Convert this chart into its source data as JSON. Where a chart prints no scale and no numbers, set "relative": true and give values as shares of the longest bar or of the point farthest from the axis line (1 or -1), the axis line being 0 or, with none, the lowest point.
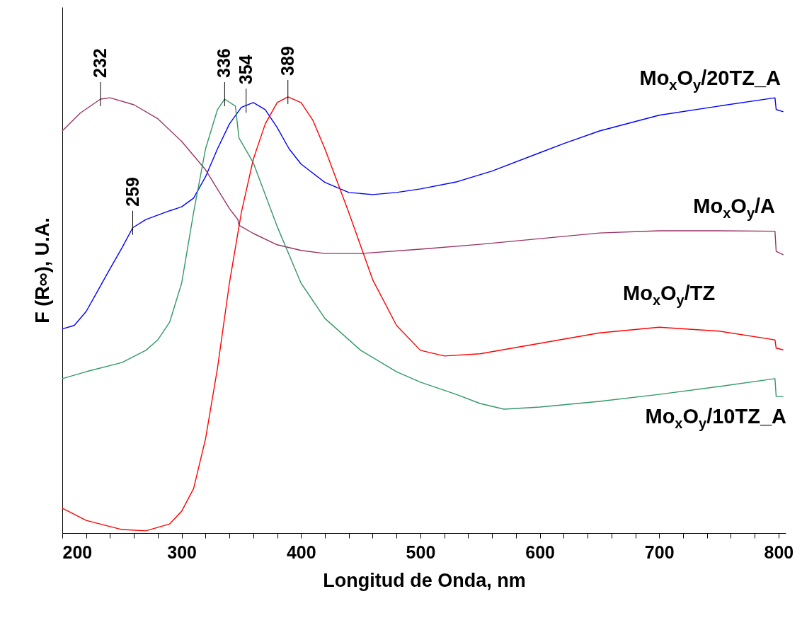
{
  "chart_data": {
    "type": "line",
    "relative": true,
    "xlabel": "Longitud de Onda, nm",
    "ylabel": "F (R∞), U.A.",
    "xlim": [
      200,
      806
    ],
    "xticks": [
      200,
      {
        "value": 220,
        "label": null
      },
      {
        "value": 240,
        "label": null
      },
      {
        "value": 260,
        "label": null
      },
      {
        "value": 280,
        "label": null
      },
      300,
      {
        "value": 320,
        "label": null
      },
      {
        "value": 340,
        "label": null
      },
      {
        "value": 360,
        "label": null
      },
      {
        "value": 380,
        "label": null
      },
      400,
      {
        "value": 420,
        "label": null
      },
      {
        "value": 440,
        "label": null
      },
      {
        "value": 460,
        "label": null
      },
      {
        "value": 480,
        "label": null
      },
      500,
      {
        "value": 520,
        "label": null
      },
      {
        "value": 540,
        "label": null
      },
      {
        "value": 560,
        "label": null
      },
      {
        "value": 580,
        "label": null
      },
      600,
      {
        "value": 620,
        "label": null
      },
      {
        "value": 640,
        "label": null
      },
      {
        "value": 660,
        "label": null
      },
      {
        "value": 680,
        "label": null
      },
      700,
      {
        "value": 720,
        "label": null
      },
      {
        "value": 740,
        "label": null
      },
      {
        "value": 760,
        "label": null
      },
      {
        "value": 780,
        "label": null
      },
      800
    ],
    "grid": false,
    "legend": false,
    "marker": "none",
    "line_style": "solid",
    "series": [
      {
        "name": "Mo$_{x}$O$_{y}$/20TZ_A",
        "color": "#0000ff",
        "x": [
          200,
          210,
          220,
          230,
          240,
          250,
          259,
          270,
          290,
          300,
          310,
          320,
          330,
          340,
          350,
          360,
          370,
          380,
          390,
          400,
          420,
          440,
          460,
          480,
          500,
          530,
          560,
          600,
          620,
          650,
          700,
          750,
          797,
          798,
          804
        ],
        "values": [
          0.468,
          0.476,
          0.508,
          0.557,
          0.606,
          0.654,
          0.7,
          0.719,
          0.739,
          0.748,
          0.768,
          0.817,
          0.881,
          0.938,
          0.976,
          0.987,
          0.971,
          0.93,
          0.881,
          0.846,
          0.804,
          0.781,
          0.776,
          0.781,
          0.789,
          0.805,
          0.83,
          0.872,
          0.893,
          0.922,
          0.958,
          0.979,
          0.998,
          0.971,
          0.966
        ]
      },
      {
        "name": "Mo$_{x}$O$_{y}$/A",
        "color": "#993366",
        "x": [
          200,
          215,
          232,
          240,
          260,
          280,
          300,
          320,
          340,
          347,
          348,
          360,
          380,
          400,
          420,
          450,
          500,
          550,
          600,
          650,
          700,
          750,
          797,
          798,
          804
        ],
        "values": [
          0.922,
          0.963,
          0.995,
          0.998,
          0.982,
          0.95,
          0.898,
          0.833,
          0.744,
          0.719,
          0.706,
          0.687,
          0.661,
          0.648,
          0.641,
          0.641,
          0.651,
          0.662,
          0.675,
          0.688,
          0.693,
          0.693,
          0.692,
          0.646,
          0.638
        ]
      },
      {
        "name": "Mo$_{x}$O$_{y}$/TZ",
        "color": "#ff0000",
        "x": [
          200,
          220,
          250,
          270,
          290,
          300,
          310,
          320,
          330,
          340,
          350,
          360,
          370,
          380,
          389,
          400,
          410,
          420,
          440,
          460,
          480,
          500,
          520,
          550,
          600,
          650,
          700,
          750,
          797,
          798,
          804
        ],
        "values": [
          0.057,
          0.029,
          0.008,
          0.005,
          0.021,
          0.05,
          0.102,
          0.216,
          0.378,
          0.573,
          0.735,
          0.857,
          0.938,
          0.987,
          1.0,
          0.987,
          0.946,
          0.881,
          0.735,
          0.581,
          0.476,
          0.419,
          0.406,
          0.411,
          0.435,
          0.459,
          0.472,
          0.463,
          0.443,
          0.424,
          0.42
        ]
      },
      {
        "name": "Mo$_{x}$O$_{y}$/10TZ_A",
        "color": "#339966",
        "x": [
          200,
          220,
          250,
          270,
          280,
          290,
          300,
          310,
          320,
          330,
          336,
          345,
          348,
          360,
          380,
          400,
          420,
          450,
          480,
          500,
          530,
          550,
          570,
          600,
          650,
          700,
          750,
          797,
          798,
          804
        ],
        "values": [
          0.354,
          0.37,
          0.391,
          0.419,
          0.443,
          0.484,
          0.573,
          0.735,
          0.881,
          0.971,
          0.995,
          0.979,
          0.906,
          0.849,
          0.703,
          0.573,
          0.492,
          0.419,
          0.37,
          0.346,
          0.318,
          0.297,
          0.284,
          0.289,
          0.302,
          0.318,
          0.336,
          0.354,
          0.313,
          0.313
        ]
      }
    ],
    "annotations": [
      {
        "text": "232",
        "x": 232,
        "y": 0.995
      },
      {
        "text": "259",
        "x": 259,
        "y": 0.7
      },
      {
        "text": "336",
        "x": 336,
        "y": 0.995
      },
      {
        "text": "354",
        "x": 354,
        "y": 0.98
      },
      {
        "text": "389",
        "x": 389,
        "y": 1.0
      }
    ]
  }
}
